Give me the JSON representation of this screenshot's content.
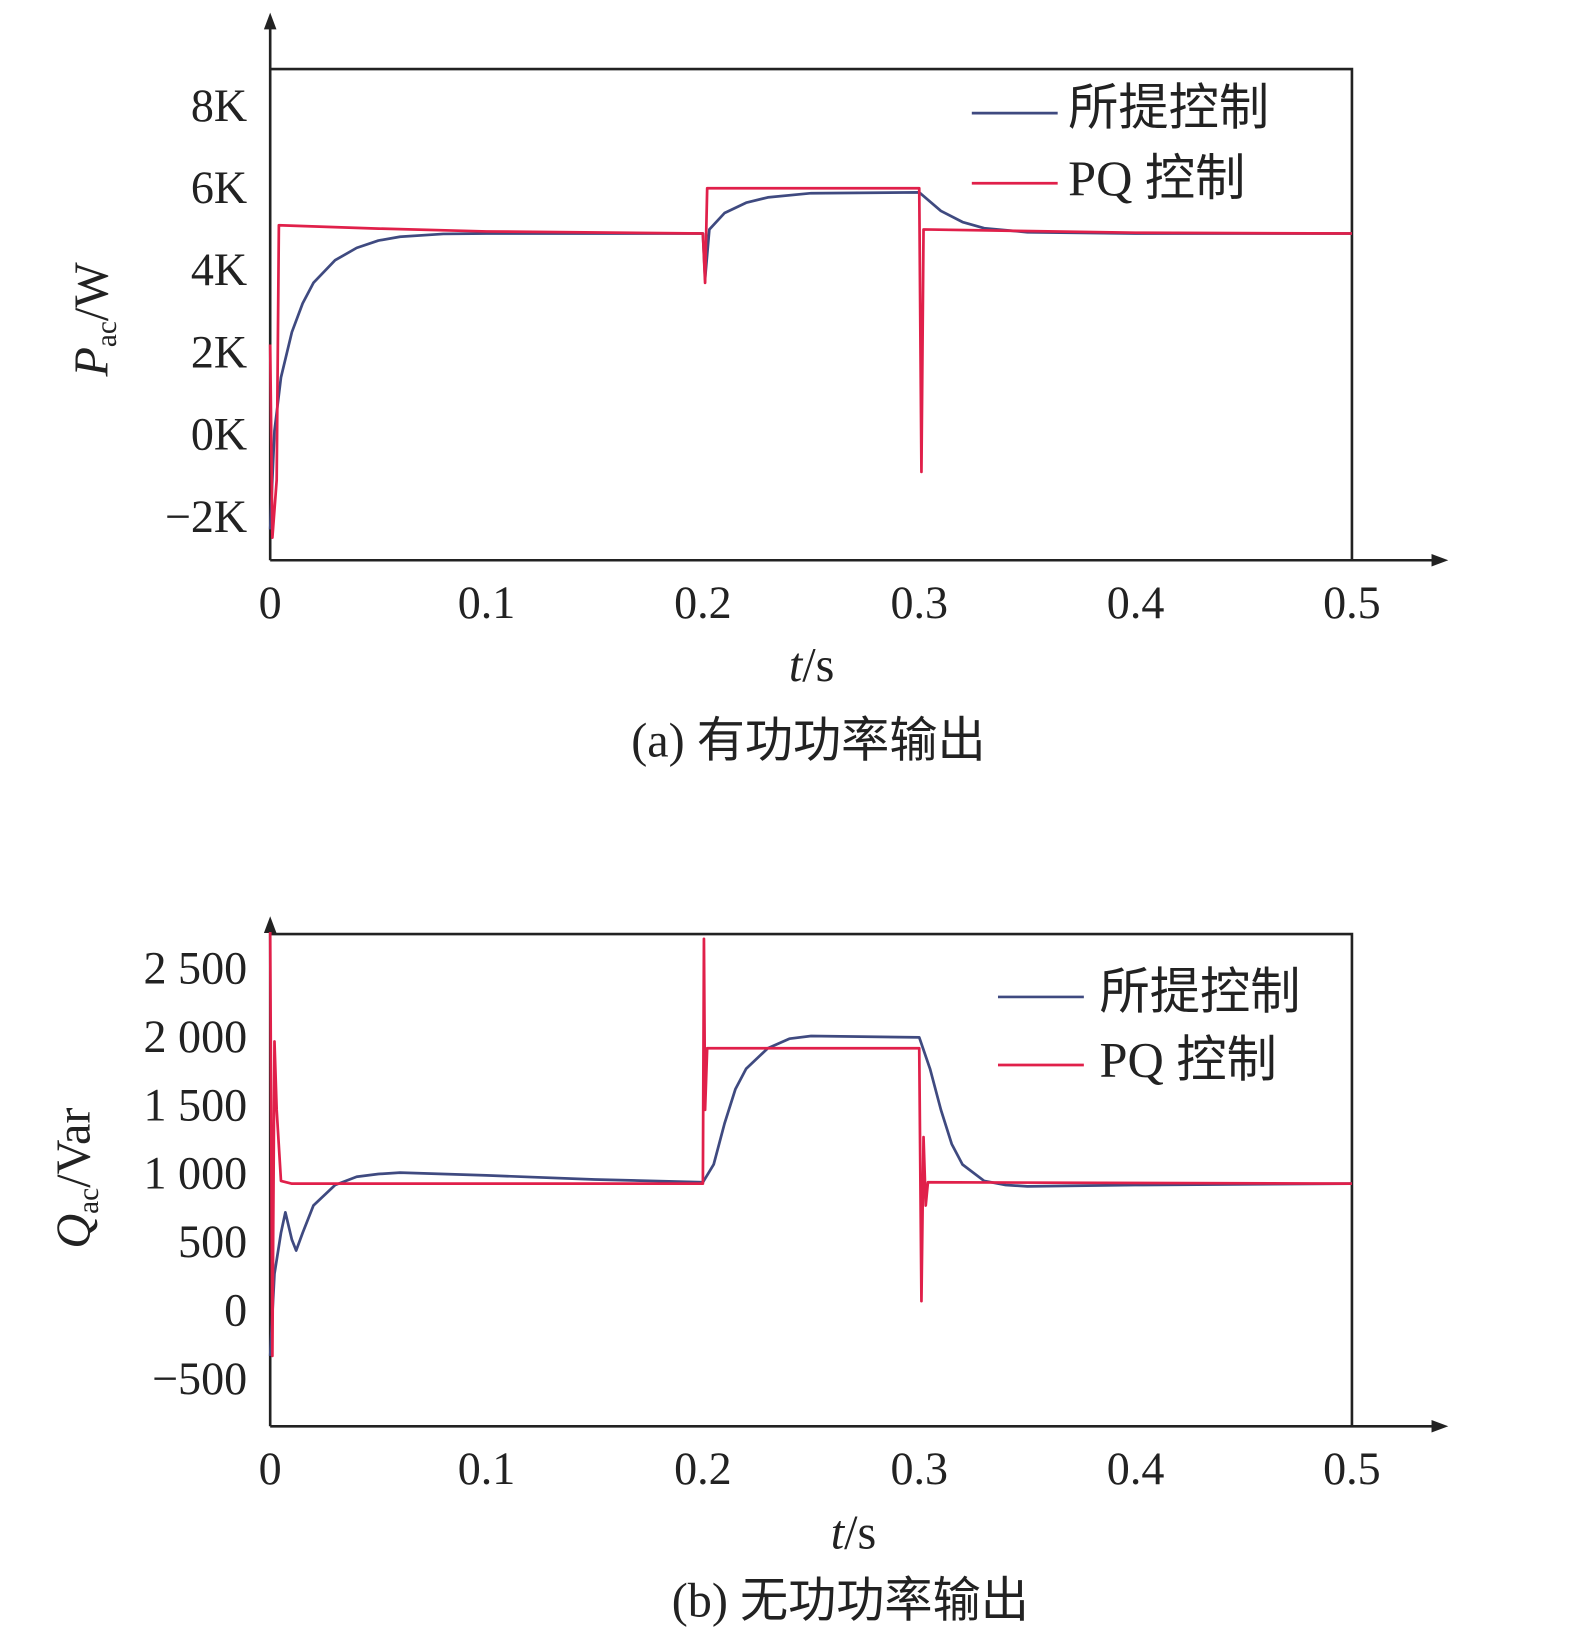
{
  "chart_data": [
    {
      "type": "line",
      "title": "(a) 有功功率输出",
      "xlabel": [
        "t",
        "/s"
      ],
      "ylabel": [
        "P",
        "ac",
        "/W"
      ],
      "xlim": [
        0,
        0.5
      ],
      "xticks": [
        0,
        0.1,
        0.2,
        0.3,
        0.4,
        0.5
      ],
      "ylim": [
        -2950,
        9000
      ],
      "yticks": [
        {
          "value": -2000,
          "label": "−2K"
        },
        {
          "value": 0,
          "label": "0K"
        },
        {
          "value": 2000,
          "label": "2K"
        },
        {
          "value": 4000,
          "label": "4K"
        },
        {
          "value": 6000,
          "label": "6K"
        },
        {
          "value": 8000,
          "label": "8K"
        }
      ],
      "grid": false,
      "legend": "upper right",
      "series": [
        {
          "name": "所提控制",
          "color": "#3f4a80",
          "x": [
            0,
            0.002,
            0.005,
            0.01,
            0.015,
            0.02,
            0.03,
            0.04,
            0.05,
            0.06,
            0.08,
            0.1,
            0.2,
            0.201,
            0.203,
            0.21,
            0.22,
            0.23,
            0.25,
            0.3,
            0.31,
            0.32,
            0.33,
            0.35,
            0.4,
            0.5
          ],
          "values": [
            -2200,
            200,
            1500,
            2600,
            3300,
            3800,
            4350,
            4650,
            4830,
            4920,
            4990,
            5000,
            5000,
            3900,
            5100,
            5500,
            5750,
            5880,
            5980,
            6000,
            5550,
            5280,
            5130,
            5030,
            5000,
            5000
          ]
        },
        {
          "name": "PQ 控制",
          "color": "#e0204a",
          "x": [
            0,
            0.001,
            0.003,
            0.004,
            0.05,
            0.1,
            0.2,
            0.201,
            0.202,
            0.3,
            0.301,
            0.302,
            0.4,
            0.5
          ],
          "values": [
            2300,
            -2400,
            -1000,
            5200,
            5120,
            5050,
            5000,
            3800,
            6100,
            6100,
            -800,
            5100,
            5020,
            5000
          ]
        }
      ]
    },
    {
      "type": "line",
      "title": "(b) 无功功率输出",
      "xlabel": [
        "t",
        "/s"
      ],
      "ylabel": [
        "Q",
        "ac",
        "/Var"
      ],
      "xlim": [
        0,
        0.5
      ],
      "xticks": [
        0,
        0.1,
        0.2,
        0.3,
        0.4,
        0.5
      ],
      "ylim": [
        -815,
        2785
      ],
      "yticks": [
        {
          "value": -500,
          "label": "−500"
        },
        0,
        500,
        {
          "value": 1000,
          "label": "1 000"
        },
        {
          "value": 1500,
          "label": "1 500"
        },
        {
          "value": 2000,
          "label": "2 000"
        },
        {
          "value": 2500,
          "label": "2 500"
        }
      ],
      "grid": false,
      "legend": "upper right",
      "series": [
        {
          "name": "所提控制",
          "color": "#3f4a80",
          "x": [
            0,
            0.002,
            0.005,
            0.007,
            0.01,
            0.012,
            0.015,
            0.02,
            0.03,
            0.04,
            0.05,
            0.06,
            0.1,
            0.15,
            0.2,
            0.205,
            0.21,
            0.215,
            0.22,
            0.23,
            0.24,
            0.25,
            0.3,
            0.305,
            0.31,
            0.315,
            0.32,
            0.33,
            0.34,
            0.35,
            0.4,
            0.5
          ],
          "values": [
            -300,
            300,
            600,
            750,
            550,
            470,
            600,
            800,
            950,
            1010,
            1030,
            1040,
            1020,
            990,
            970,
            1100,
            1400,
            1650,
            1800,
            1950,
            2020,
            2040,
            2030,
            1800,
            1500,
            1250,
            1100,
            980,
            950,
            940,
            950,
            960
          ]
        },
        {
          "name": "PQ 控制",
          "color": "#e0204a",
          "x": [
            0,
            0.001,
            0.002,
            0.003,
            0.005,
            0.01,
            0.2,
            0.2005,
            0.201,
            0.202,
            0.3,
            0.301,
            0.302,
            0.303,
            0.304,
            0.5
          ],
          "values": [
            2800,
            -300,
            2000,
            1500,
            980,
            960,
            960,
            2750,
            1500,
            1950,
            1950,
            100,
            1300,
            800,
            970,
            960
          ]
        }
      ]
    }
  ]
}
